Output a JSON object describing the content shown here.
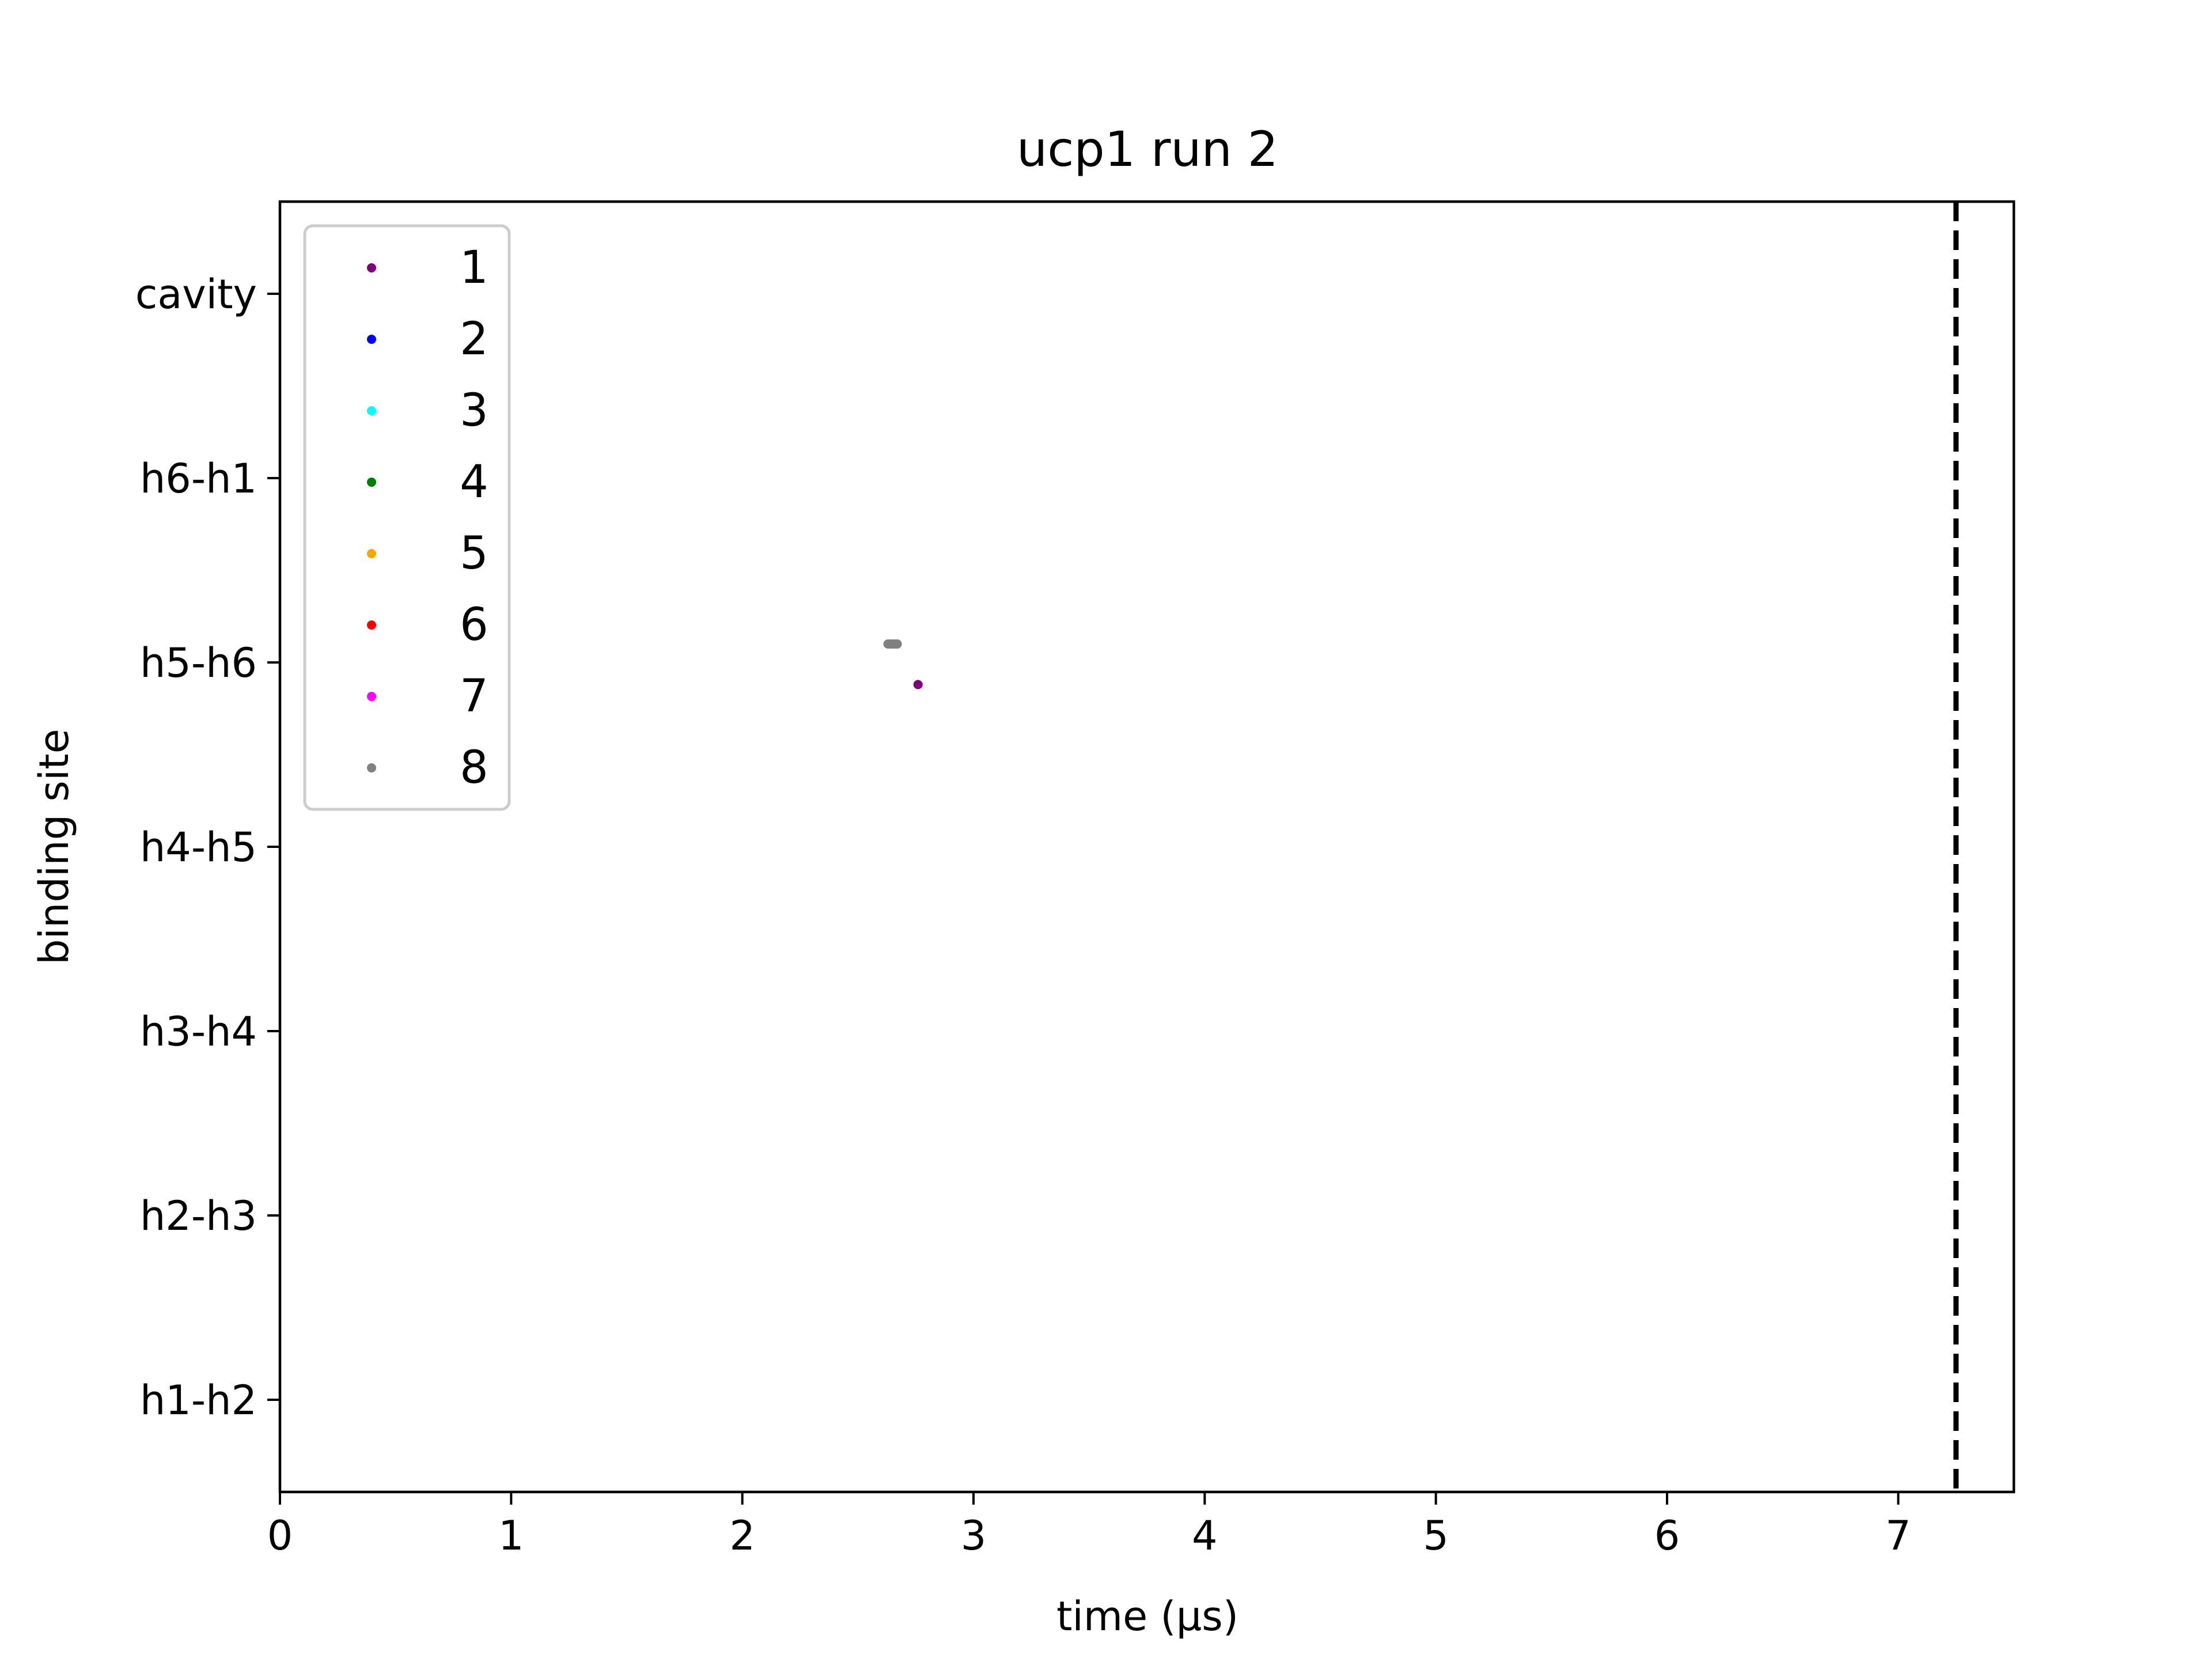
{
  "chart_data": {
    "type": "scatter",
    "title": "ucp1 run 2",
    "xlabel": "time (μs)",
    "ylabel": "binding site",
    "xlim": [
      0,
      7.5
    ],
    "x_ticks": [
      0,
      1,
      2,
      3,
      4,
      5,
      6,
      7
    ],
    "x_tick_labels": [
      "0",
      "1",
      "2",
      "3",
      "4",
      "5",
      "6",
      "7"
    ],
    "categories": [
      "h1-h2",
      "h2-h3",
      "h3-h4",
      "h4-h5",
      "h5-h6",
      "h6-h1",
      "cavity"
    ],
    "ylim": [
      -0.5,
      6.5
    ],
    "grid": false,
    "legend_position": "top-left",
    "vline": {
      "x": 7.25,
      "style": "dashed",
      "color": "#000000"
    },
    "series": [
      {
        "name": "1",
        "color": "#800080",
        "points": [
          [
            2.76,
            3.88
          ]
        ]
      },
      {
        "name": "2",
        "color": "#0000ff",
        "points": []
      },
      {
        "name": "3",
        "color": "#00ffff",
        "points": []
      },
      {
        "name": "4",
        "color": "#008000",
        "points": []
      },
      {
        "name": "5",
        "color": "#ffa500",
        "points": []
      },
      {
        "name": "6",
        "color": "#ff0000",
        "points": []
      },
      {
        "name": "7",
        "color": "#ff00ff",
        "points": []
      },
      {
        "name": "8",
        "color": "#808080",
        "points": [
          [
            2.63,
            4.1
          ],
          [
            2.64,
            4.1
          ],
          [
            2.65,
            4.1
          ],
          [
            2.66,
            4.1
          ],
          [
            2.67,
            4.1
          ]
        ]
      }
    ]
  }
}
